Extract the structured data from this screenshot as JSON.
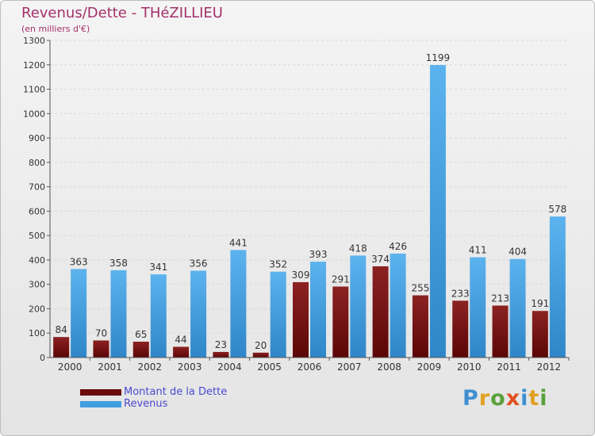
{
  "header": {
    "title": "Revenus/Dette - THéZILLIEU",
    "subtitle": "(en milliers d'€)"
  },
  "colors": {
    "dette": "#6b0a0a",
    "revenus": "#3f9de0",
    "title": "#a3306a",
    "legend_text": "#4a4ad0"
  },
  "legend": {
    "items": [
      {
        "label": "Montant de la Dette",
        "color": "#6b0a0a"
      },
      {
        "label": "Revenus",
        "color": "#3f9de0"
      }
    ]
  },
  "logo": {
    "text": "Proxiti",
    "letter_colors": [
      "#3f8fd0",
      "#e0a020",
      "#5aa03a",
      "#e05020",
      "#3f8fd0",
      "#e0a020",
      "#5aa03a"
    ]
  },
  "chart_data": {
    "type": "bar",
    "title": "Revenus/Dette - THéZILLIEU",
    "subtitle": "(en milliers d'€)",
    "categories": [
      "2000",
      "2001",
      "2002",
      "2003",
      "2004",
      "2005",
      "2006",
      "2007",
      "2008",
      "2009",
      "2010",
      "2011",
      "2012"
    ],
    "series": [
      {
        "name": "Montant de la Dette",
        "color": "#6b0a0a",
        "values": [
          84,
          70,
          65,
          44,
          23,
          20,
          309,
          291,
          374,
          255,
          233,
          213,
          191
        ]
      },
      {
        "name": "Revenus",
        "color": "#3f9de0",
        "values": [
          363,
          358,
          341,
          356,
          441,
          352,
          393,
          418,
          426,
          1199,
          411,
          404,
          578
        ]
      }
    ],
    "ylim": [
      0,
      1300
    ],
    "yticks": [
      0,
      100,
      200,
      300,
      400,
      500,
      600,
      700,
      800,
      900,
      1000,
      1100,
      1200,
      1300
    ],
    "grid": true,
    "legend_position": "bottom-left"
  }
}
